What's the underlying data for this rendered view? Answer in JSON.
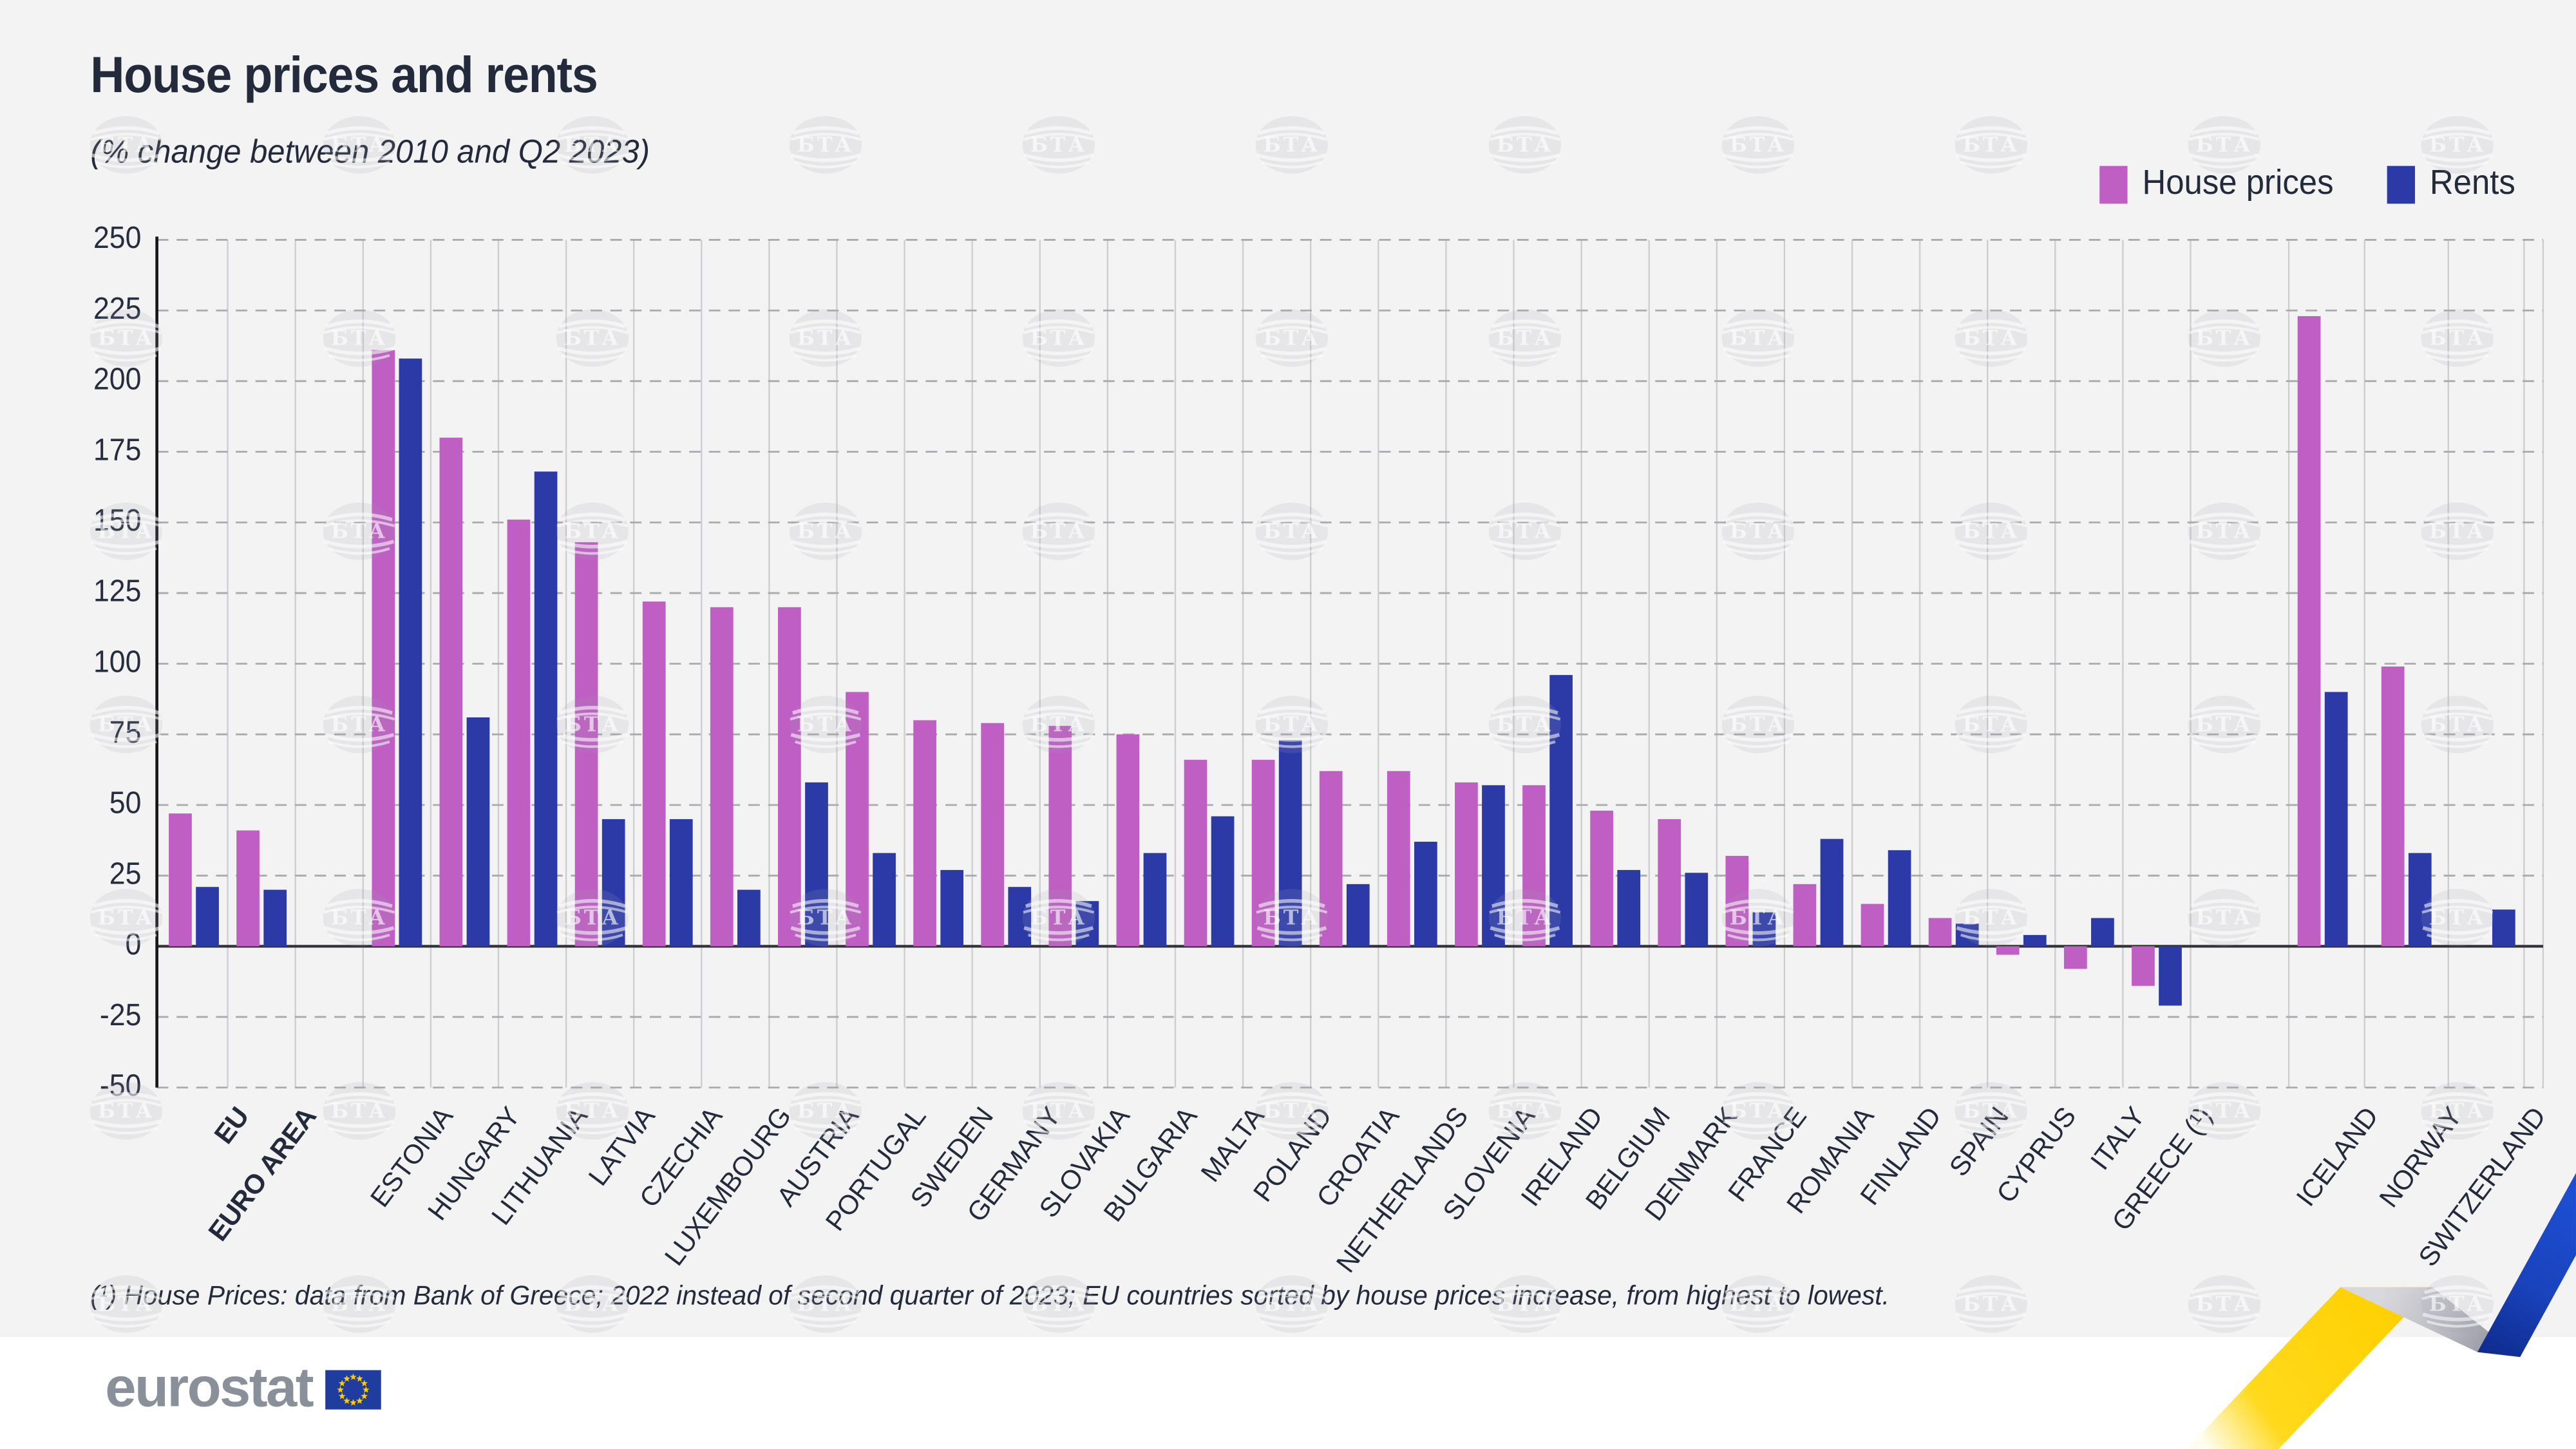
{
  "chart_data": {
    "type": "bar",
    "title": "House prices and rents",
    "subtitle": "(% change between 2010 and Q2 2023)",
    "legend_position": "top-right",
    "grid": "dashed-horizontal",
    "ylim": [
      -50,
      250
    ],
    "ytick_step": 25,
    "ytick_labels": [
      "250",
      "225",
      "200",
      "175",
      "150",
      "125",
      "100",
      "75",
      "50",
      "25",
      "0",
      "-25",
      "-50"
    ],
    "categories": [
      "EU",
      "EURO AREA",
      "ESTONIA",
      "HUNGARY",
      "LITHUANIA",
      "LATVIA",
      "CZECHIA",
      "LUXEMBOURG",
      "AUSTRIA",
      "PORTUGAL",
      "SWEDEN",
      "GERMANY",
      "SLOVAKIA",
      "BULGARIA",
      "MALTA",
      "POLAND",
      "CROATIA",
      "NETHERLANDS",
      "SLOVENIA",
      "IRELAND",
      "BELGIUM",
      "DENMARK",
      "FRANCE",
      "ROMANIA",
      "FINLAND",
      "SPAIN",
      "CYPRUS",
      "ITALY",
      "GREECE (¹)",
      "ICELAND",
      "NORWAY",
      "SWITZERLAND"
    ],
    "bold_categories": [
      "EU",
      "EURO AREA"
    ],
    "series": [
      {
        "name": "House prices",
        "color": "#bf5ec3",
        "values": [
          47,
          41,
          211,
          180,
          151,
          143,
          122,
          120,
          120,
          90,
          80,
          79,
          78,
          75,
          66,
          66,
          62,
          62,
          58,
          57,
          48,
          45,
          32,
          22,
          15,
          10,
          -3,
          -8,
          -14,
          223,
          99,
          null
        ]
      },
      {
        "name": "Rents",
        "color": "#2c3aa8",
        "values": [
          21,
          20,
          208,
          81,
          168,
          45,
          45,
          20,
          58,
          33,
          27,
          21,
          16,
          33,
          46,
          73,
          22,
          37,
          57,
          96,
          27,
          26,
          12,
          38,
          34,
          8,
          4,
          10,
          -21,
          90,
          33,
          13
        ]
      }
    ]
  },
  "footnote": {
    "text": "(¹) House Prices: data from Bank of Greece; 2022 instead of second quarter of 2023; EU countries sorted by house prices increase, from highest to lowest."
  },
  "branding": {
    "logo_text": "eurostat",
    "flag_blue": "#1f3d9e",
    "flag_star_color": "#ffcc00"
  },
  "watermark": {
    "text": "БТА"
  },
  "ribbon_colors": {
    "yellow": "#ffd411",
    "silver": "#a7a8b0",
    "blue": "#1d4ed2"
  }
}
